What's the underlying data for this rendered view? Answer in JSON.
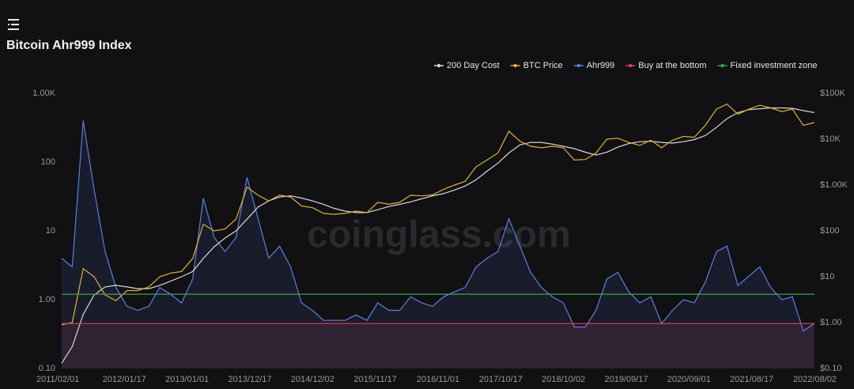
{
  "header": {
    "title": "Bitcoin Ahr999 Index"
  },
  "chart_data": {
    "type": "line",
    "log_scale": true,
    "grid": false,
    "legend_position": "top-right",
    "watermark": "coinglass.com",
    "x": [
      "2011/02/01",
      "2011/04/01",
      "2011/06/01",
      "2011/08/01",
      "2011/10/01",
      "2011/12/01",
      "2012/02/01",
      "2012/04/01",
      "2012/06/01",
      "2012/08/01",
      "2012/10/01",
      "2012/12/01",
      "2013/02/01",
      "2013/04/01",
      "2013/06/01",
      "2013/08/01",
      "2013/10/01",
      "2013/12/01",
      "2014/02/01",
      "2014/04/01",
      "2014/06/01",
      "2014/08/01",
      "2014/10/01",
      "2014/12/01",
      "2015/02/01",
      "2015/04/01",
      "2015/06/01",
      "2015/08/01",
      "2015/10/01",
      "2015/12/01",
      "2016/02/01",
      "2016/04/01",
      "2016/06/01",
      "2016/08/01",
      "2016/10/01",
      "2016/12/01",
      "2017/02/01",
      "2017/04/01",
      "2017/06/01",
      "2017/08/01",
      "2017/10/01",
      "2017/12/01",
      "2018/02/01",
      "2018/04/01",
      "2018/06/01",
      "2018/08/01",
      "2018/10/01",
      "2018/12/01",
      "2019/02/01",
      "2019/04/01",
      "2019/06/01",
      "2019/08/01",
      "2019/10/01",
      "2019/12/01",
      "2020/02/01",
      "2020/04/01",
      "2020/06/01",
      "2020/08/01",
      "2020/10/01",
      "2020/12/01",
      "2021/02/01",
      "2021/04/01",
      "2021/06/01",
      "2021/08/01",
      "2021/10/01",
      "2021/12/01",
      "2022/02/01",
      "2022/04/01",
      "2022/06/01",
      "2022/08/01"
    ],
    "xlim": [
      "2011/02/01",
      "2022/08/02"
    ],
    "xticks": [
      "2011/02/01",
      "2012/01/17",
      "2013/01/01",
      "2013/12/17",
      "2014/12/02",
      "2015/11/17",
      "2016/11/01",
      "2017/10/17",
      "2018/10/02",
      "2019/09/17",
      "2020/09/01",
      "2021/08/17",
      "2022/08/02"
    ],
    "ylim": [
      0.1,
      1000
    ],
    "yticks": [
      {
        "value": 0.1,
        "label": "0.10"
      },
      {
        "value": 1,
        "label": "1.00"
      },
      10,
      100,
      {
        "value": 1000,
        "label": "1.00K"
      }
    ],
    "y2lim": [
      0.1,
      100000
    ],
    "y2ticks": [
      {
        "value": 0.1,
        "label": "$0.10"
      },
      {
        "value": 1,
        "label": "$1.00"
      },
      {
        "value": 10,
        "label": "$10"
      },
      {
        "value": 100,
        "label": "$100"
      },
      {
        "value": 1000,
        "label": "$1.00K"
      },
      {
        "value": 10000,
        "label": "$10K"
      },
      {
        "value": 100000,
        "label": "$100K"
      }
    ],
    "series": [
      {
        "name": "200 Day Cost",
        "color": "#d8d8d8",
        "axis": "y2",
        "values": [
          0.13,
          0.3,
          1.5,
          4,
          6,
          6.5,
          6,
          5.5,
          5.5,
          6.5,
          8,
          10,
          13,
          25,
          45,
          70,
          100,
          180,
          330,
          450,
          550,
          580,
          520,
          450,
          380,
          310,
          270,
          250,
          250,
          290,
          340,
          380,
          430,
          500,
          580,
          650,
          780,
          950,
          1300,
          2000,
          3000,
          5000,
          7500,
          8500,
          8500,
          7800,
          7000,
          6200,
          5200,
          4500,
          5200,
          6700,
          8000,
          8800,
          9000,
          8500,
          8200,
          8800,
          9800,
          12000,
          18000,
          28000,
          38000,
          44000,
          46000,
          48000,
          48000,
          47000,
          42000,
          38000
        ]
      },
      {
        "name": "BTC Price",
        "color": "#e0b040",
        "axis": "y2",
        "values": [
          0.9,
          1,
          15,
          10,
          4,
          3,
          5,
          5,
          6,
          10,
          12,
          13,
          25,
          140,
          100,
          110,
          180,
          900,
          600,
          450,
          600,
          550,
          350,
          320,
          240,
          230,
          240,
          270,
          250,
          420,
          380,
          420,
          600,
          580,
          610,
          800,
          1000,
          1200,
          2500,
          3500,
          5000,
          15000,
          9000,
          7000,
          6500,
          7000,
          6500,
          3500,
          3600,
          5000,
          10000,
          10500,
          8500,
          7300,
          9500,
          6500,
          9500,
          11500,
          11000,
          20000,
          45000,
          58000,
          35000,
          45000,
          55000,
          48000,
          40000,
          45000,
          20000,
          23000
        ]
      },
      {
        "name": "Ahr999",
        "color": "#5b7fe0",
        "values": [
          4,
          3,
          400,
          40,
          5,
          1.5,
          0.8,
          0.7,
          0.8,
          1.5,
          1.2,
          0.9,
          2,
          30,
          8,
          5,
          8,
          60,
          15,
          4,
          6,
          3,
          0.9,
          0.7,
          0.5,
          0.5,
          0.5,
          0.6,
          0.5,
          0.9,
          0.7,
          0.7,
          1.1,
          0.9,
          0.8,
          1.1,
          1.3,
          1.5,
          3,
          4,
          5,
          15,
          6,
          2.5,
          1.5,
          1.1,
          0.9,
          0.4,
          0.4,
          0.7,
          2,
          2.5,
          1.3,
          0.9,
          1.1,
          0.45,
          0.7,
          1.0,
          0.9,
          1.8,
          5,
          6,
          1.6,
          2.2,
          3,
          1.5,
          1.0,
          1.1,
          0.35,
          0.45
        ]
      }
    ],
    "reference_lines": [
      {
        "name": "Buy at the bottom",
        "color": "#e0405a",
        "value": 0.45
      },
      {
        "name": "Fixed investment zone",
        "color": "#3fa34d",
        "value": 1.2
      }
    ]
  }
}
